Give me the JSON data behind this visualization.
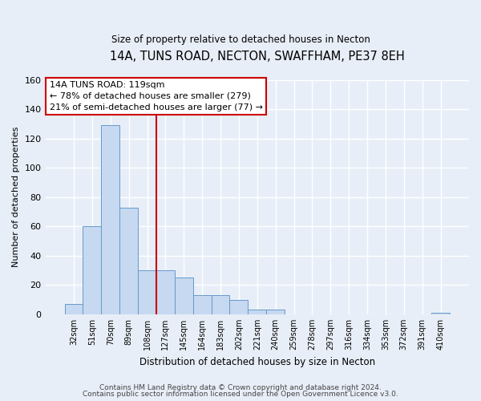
{
  "title": "14A, TUNS ROAD, NECTON, SWAFFHAM, PE37 8EH",
  "subtitle": "Size of property relative to detached houses in Necton",
  "xlabel": "Distribution of detached houses by size in Necton",
  "ylabel": "Number of detached properties",
  "bar_labels": [
    "32sqm",
    "51sqm",
    "70sqm",
    "89sqm",
    "108sqm",
    "127sqm",
    "145sqm",
    "164sqm",
    "183sqm",
    "202sqm",
    "221sqm",
    "240sqm",
    "259sqm",
    "278sqm",
    "297sqm",
    "316sqm",
    "334sqm",
    "353sqm",
    "372sqm",
    "391sqm",
    "410sqm"
  ],
  "bar_values": [
    7,
    60,
    129,
    73,
    30,
    30,
    25,
    13,
    13,
    10,
    3,
    3,
    0,
    0,
    0,
    0,
    0,
    0,
    0,
    0,
    1
  ],
  "bar_color": "#c6d9f0",
  "bar_edge_color": "#6699cc",
  "vline_x": 4.5,
  "vline_color": "#cc0000",
  "annotation_lines": [
    "14A TUNS ROAD: 119sqm",
    "← 78% of detached houses are smaller (279)",
    "21% of semi-detached houses are larger (77) →"
  ],
  "ylim": [
    0,
    160
  ],
  "yticks": [
    0,
    20,
    40,
    60,
    80,
    100,
    120,
    140,
    160
  ],
  "footer_line1": "Contains HM Land Registry data © Crown copyright and database right 2024.",
  "footer_line2": "Contains public sector information licensed under the Open Government Licence v3.0.",
  "bg_color": "#e8eef7",
  "plot_bg_color": "#e8eef7"
}
